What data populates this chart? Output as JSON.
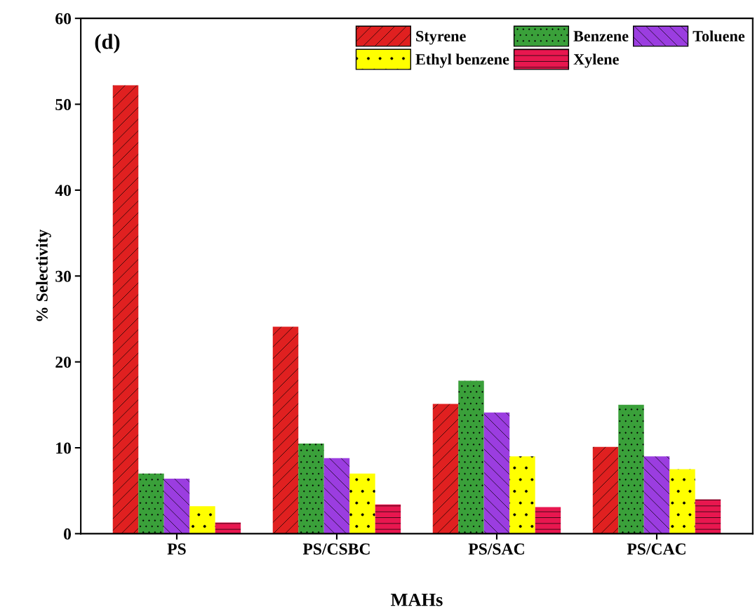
{
  "chart_data": {
    "type": "bar",
    "xlabel": "MAHs",
    "ylabel": "% Selectivity",
    "annotations": [
      "(d)"
    ],
    "categories": [
      "PS",
      "PS/CSBC",
      "PS/SAC",
      "PS/CAC"
    ],
    "series": [
      {
        "name": "Styrene",
        "color": "#e02020",
        "values": [
          52.2,
          24.1,
          15.1,
          10.1
        ]
      },
      {
        "name": "Benzene",
        "color": "#3aa03a",
        "values": [
          7.0,
          10.5,
          17.8,
          15.0
        ]
      },
      {
        "name": "Toluene",
        "color": "#9b3de0",
        "values": [
          6.4,
          8.8,
          14.1,
          9.0
        ]
      },
      {
        "name": "Ethyl benzene",
        "color": "#ffff00",
        "values": [
          3.2,
          7.0,
          9.0,
          7.5
        ]
      },
      {
        "name": "Xylene",
        "color": "#e8174f",
        "values": [
          1.3,
          3.4,
          3.1,
          4.0
        ]
      }
    ],
    "ylim": [
      0,
      60
    ],
    "yticks": [
      0,
      10,
      20,
      30,
      40,
      50,
      60
    ],
    "legend": "top right",
    "grid": false
  }
}
